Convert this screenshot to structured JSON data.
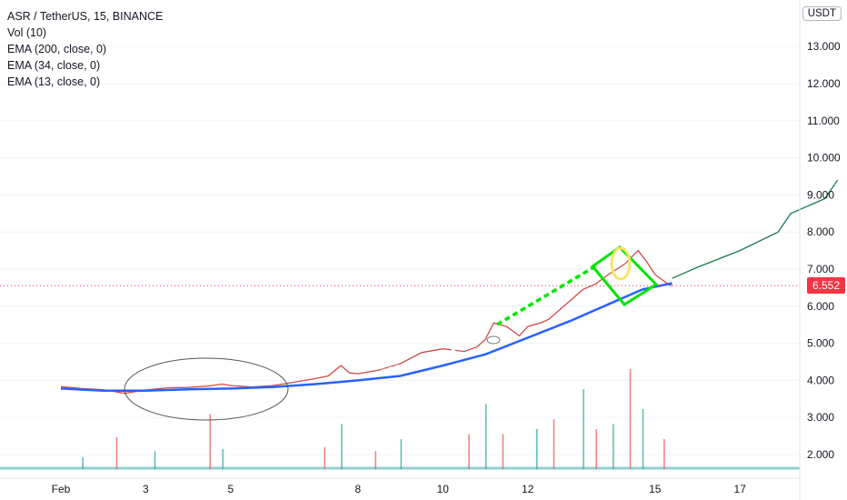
{
  "legend": {
    "symbol": "ASR / TetherUS, 15, BINANCE",
    "vol": "Vol (10)",
    "ema1": "EMA (200, close, 0)",
    "ema2": "EMA (34, close, 0)",
    "ema3": "EMA (13, close, 0)"
  },
  "currency": "USDT",
  "last_price": "6.552",
  "colors": {
    "up": "#26a69a",
    "down": "#ef5350",
    "ema": "#2962ff",
    "annot": "#00e600",
    "circle": "#f7e36b",
    "projection": "#1b7a4b",
    "last": "#f23645"
  },
  "chart_data": {
    "type": "line",
    "title": "ASR / TetherUS, 15, BINANCE",
    "xlabel": "",
    "ylabel": "",
    "y_ticks": [
      "13.000",
      "12.000",
      "11.000",
      "10.000",
      "9.000",
      "8.000",
      "7.000",
      "6.000",
      "5.000",
      "4.000",
      "3.000",
      "2.000"
    ],
    "x_ticks": [
      "Feb",
      "3",
      "5",
      "8",
      "10",
      "12",
      "15",
      "17"
    ],
    "ylim": [
      1.6,
      13.7
    ],
    "last_value": 6.552,
    "series": [
      {
        "type": "line",
        "color": "#d04a4a",
        "points": [
          [
            0,
            3.83
          ],
          [
            0.5,
            3.78
          ],
          [
            1,
            3.75
          ],
          [
            1.5,
            3.65
          ],
          [
            2,
            3.74
          ],
          [
            2.5,
            3.8
          ],
          [
            3,
            3.81
          ],
          [
            3.5,
            3.85
          ],
          [
            3.8,
            3.9
          ],
          [
            4,
            3.86
          ],
          [
            4.5,
            3.82
          ],
          [
            5,
            3.86
          ],
          [
            5.5,
            3.95
          ],
          [
            6,
            4.05
          ],
          [
            6.3,
            4.12
          ],
          [
            6.6,
            4.4
          ],
          [
            6.8,
            4.2
          ],
          [
            7,
            4.18
          ],
          [
            7.5,
            4.28
          ],
          [
            8,
            4.45
          ],
          [
            8.5,
            4.75
          ],
          [
            9,
            4.85
          ],
          [
            9.5,
            4.78
          ],
          [
            9.8,
            4.9
          ],
          [
            10,
            5.1
          ],
          [
            10.2,
            5.55
          ],
          [
            10.5,
            5.45
          ],
          [
            10.8,
            5.2
          ],
          [
            11,
            5.45
          ],
          [
            11.3,
            5.55
          ],
          [
            11.5,
            5.65
          ],
          [
            11.8,
            5.95
          ],
          [
            12,
            6.15
          ],
          [
            12.3,
            6.45
          ],
          [
            12.6,
            6.6
          ],
          [
            12.9,
            6.85
          ],
          [
            13.3,
            7.15
          ],
          [
            13.6,
            7.5
          ],
          [
            13.8,
            7.2
          ],
          [
            14,
            6.85
          ],
          [
            14.3,
            6.6
          ],
          [
            14.4,
            6.55
          ]
        ]
      },
      {
        "type": "line",
        "color": "#2962ff",
        "points": [
          [
            0,
            3.78
          ],
          [
            1,
            3.72
          ],
          [
            2,
            3.72
          ],
          [
            3,
            3.76
          ],
          [
            4,
            3.78
          ],
          [
            5,
            3.82
          ],
          [
            6,
            3.9
          ],
          [
            7,
            4.0
          ],
          [
            8,
            4.12
          ],
          [
            9,
            4.4
          ],
          [
            10,
            4.7
          ],
          [
            11,
            5.15
          ],
          [
            12,
            5.6
          ],
          [
            13,
            6.1
          ],
          [
            13.7,
            6.45
          ],
          [
            14.4,
            6.62
          ]
        ]
      },
      {
        "type": "line",
        "color": "#1b7a4b",
        "points": [
          [
            14.4,
            6.75
          ],
          [
            15,
            7.05
          ],
          [
            16,
            7.5
          ],
          [
            16.9,
            8.0
          ],
          [
            17.2,
            8.5
          ],
          [
            18,
            8.9
          ],
          [
            18.3,
            9.4
          ]
        ]
      }
    ],
    "volume": [
      [
        0.5,
        0.12
      ],
      [
        1.3,
        0.32
      ],
      [
        2.2,
        0.18
      ],
      [
        3.5,
        0.55
      ],
      [
        3.8,
        0.2
      ],
      [
        6.2,
        0.22
      ],
      [
        6.6,
        0.45
      ],
      [
        7.4,
        0.18
      ],
      [
        8.0,
        0.3
      ],
      [
        9.6,
        0.35
      ],
      [
        10.0,
        0.65
      ],
      [
        10.4,
        0.35
      ],
      [
        11.2,
        0.4
      ],
      [
        11.6,
        0.5
      ],
      [
        12.3,
        0.8
      ],
      [
        12.6,
        0.4
      ],
      [
        13.0,
        0.45
      ],
      [
        13.4,
        1.0
      ],
      [
        13.7,
        0.6
      ],
      [
        14.2,
        0.3
      ]
    ]
  }
}
